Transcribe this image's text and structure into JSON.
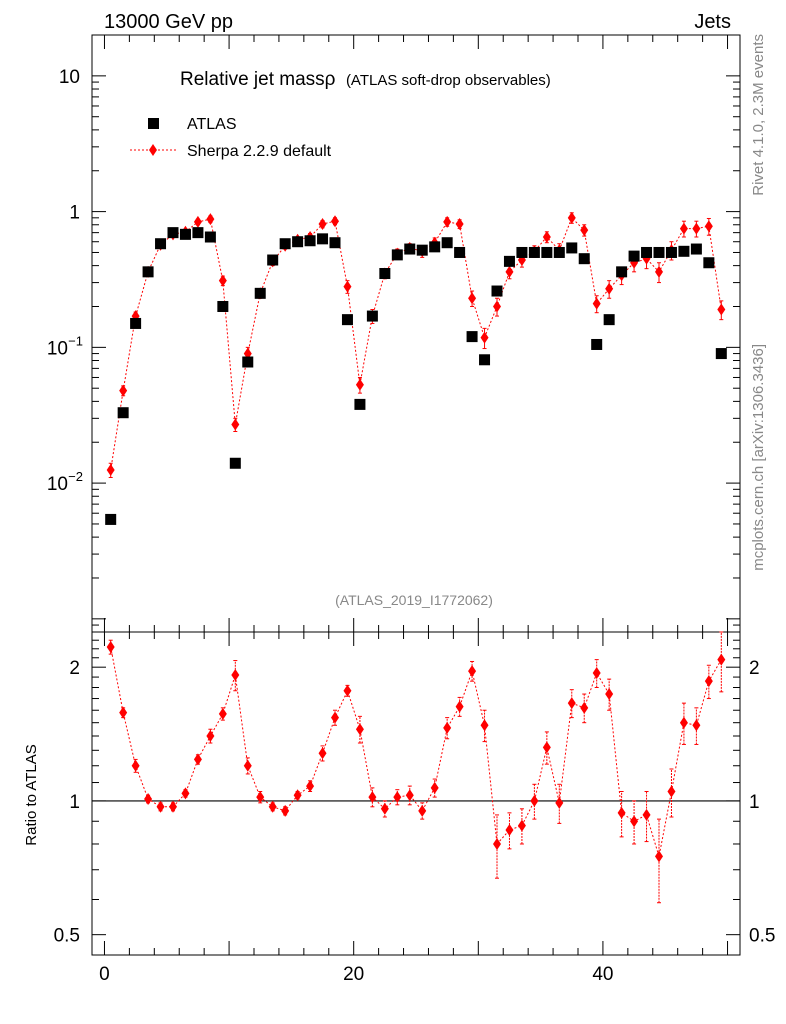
{
  "header": {
    "left": "13000 GeV pp",
    "right": "Jets"
  },
  "side_labels": {
    "rivet": "Rivet 4.1.0,  2.3M events",
    "source": "mcplots.cern.ch [arXiv:1306.3436]"
  },
  "plot_title": {
    "main": "Relative jet massρ",
    "sub": "(ATLAS soft-drop observables)"
  },
  "watermark": "(ATLAS_2019_I1772062)",
  "legend": {
    "data": "ATLAS",
    "mc": "Sherpa 2.2.9 default"
  },
  "colors": {
    "data": "#000000",
    "mc": "#ff0000",
    "frame": "#000000",
    "grey": "#888888"
  },
  "chart_data": [
    {
      "type": "scatter",
      "title": "Relative jet massρ (ATLAS soft-drop observables)",
      "xlabel": "",
      "ylabel": "",
      "yscale": "log",
      "xlim": [
        -1,
        51
      ],
      "ylim": [
        0.0008,
        20
      ],
      "yticks": [
        0.01,
        0.1,
        1,
        10
      ],
      "ytick_labels": {
        "base": "10",
        "exps": [
          "−2",
          "−1",
          "",
          ""
        ],
        "mant": [
          "10",
          "10",
          "1",
          "10"
        ]
      },
      "x": [
        0.5,
        1.5,
        2.5,
        3.5,
        4.5,
        5.5,
        6.5,
        7.5,
        8.5,
        9.5,
        10.5,
        11.5,
        12.5,
        13.5,
        14.5,
        15.5,
        16.5,
        17.5,
        18.5,
        19.5,
        20.5,
        21.5,
        22.5,
        23.5,
        24.5,
        25.5,
        26.5,
        27.5,
        28.5,
        29.5,
        30.5,
        31.5,
        32.5,
        33.5,
        34.5,
        35.5,
        36.5,
        37.5,
        38.5,
        39.5,
        40.5,
        41.5,
        42.5,
        43.5,
        44.5,
        45.5,
        46.5,
        47.5,
        48.5,
        49.5
      ],
      "series": [
        {
          "name": "ATLAS",
          "marker": "square",
          "values": [
            0.0054,
            0.033,
            0.15,
            0.36,
            0.58,
            0.7,
            0.68,
            0.7,
            0.65,
            0.2,
            0.014,
            0.078,
            0.25,
            0.44,
            0.58,
            0.6,
            0.61,
            0.63,
            0.59,
            0.16,
            0.038,
            0.17,
            0.35,
            0.48,
            0.53,
            0.52,
            0.55,
            0.59,
            0.5,
            0.12,
            0.081,
            0.26,
            0.43,
            0.5,
            0.5,
            0.5,
            0.5,
            0.54,
            0.45,
            0.105,
            0.16,
            0.36,
            0.47,
            0.5,
            0.5,
            0.5,
            0.51,
            0.53,
            0.42,
            0.09
          ]
        },
        {
          "name": "Sherpa 2.2.9 default",
          "marker": "diamond",
          "values": [
            0.0125,
            0.048,
            0.17,
            0.36,
            0.57,
            0.68,
            0.71,
            0.84,
            0.88,
            0.31,
            0.027,
            0.09,
            0.25,
            0.43,
            0.56,
            0.62,
            0.65,
            0.81,
            0.85,
            0.28,
            0.053,
            0.17,
            0.35,
            0.49,
            0.54,
            0.51,
            0.59,
            0.84,
            0.81,
            0.23,
            0.118,
            0.2,
            0.36,
            0.44,
            0.51,
            0.65,
            0.52,
            0.9,
            0.73,
            0.21,
            0.27,
            0.34,
            0.42,
            0.45,
            0.36,
            0.52,
            0.75,
            0.75,
            0.78,
            0.19
          ],
          "errors": [
            0.0015,
            0.004,
            0.012,
            0.02,
            0.03,
            0.03,
            0.03,
            0.04,
            0.05,
            0.025,
            0.003,
            0.01,
            0.02,
            0.03,
            0.03,
            0.03,
            0.04,
            0.05,
            0.05,
            0.03,
            0.007,
            0.02,
            0.03,
            0.04,
            0.04,
            0.05,
            0.05,
            0.06,
            0.06,
            0.03,
            0.02,
            0.03,
            0.04,
            0.05,
            0.05,
            0.06,
            0.06,
            0.08,
            0.07,
            0.03,
            0.04,
            0.05,
            0.06,
            0.07,
            0.06,
            0.08,
            0.1,
            0.1,
            0.11,
            0.03
          ]
        }
      ]
    },
    {
      "type": "scatter",
      "title": "",
      "xlabel": "",
      "ylabel": "Ratio to ATLAS",
      "yscale": "log",
      "xlim": [
        -1,
        51
      ],
      "ylim": [
        0.45,
        2.4
      ],
      "yticks": [
        0.5,
        1,
        2
      ],
      "ytick_labels": [
        "0.5",
        "1",
        "2"
      ],
      "xticks": [
        0,
        20,
        40
      ],
      "xtick_labels": [
        "0",
        "20",
        "40"
      ],
      "reference_line": 1,
      "x": [
        0.5,
        1.5,
        2.5,
        3.5,
        4.5,
        5.5,
        6.5,
        7.5,
        8.5,
        9.5,
        10.5,
        11.5,
        12.5,
        13.5,
        14.5,
        15.5,
        16.5,
        17.5,
        18.5,
        19.5,
        20.5,
        21.5,
        22.5,
        23.5,
        24.5,
        25.5,
        26.5,
        27.5,
        28.5,
        29.5,
        30.5,
        31.5,
        32.5,
        33.5,
        34.5,
        35.5,
        36.5,
        37.5,
        38.5,
        39.5,
        40.5,
        41.5,
        42.5,
        43.5,
        44.5,
        45.5,
        46.5,
        47.5,
        48.5,
        49.5
      ],
      "series": [
        {
          "name": "Sherpa 2.2.9 default / ATLAS",
          "marker": "diamond",
          "values": [
            2.22,
            1.58,
            1.2,
            1.01,
            0.97,
            0.97,
            1.04,
            1.24,
            1.4,
            1.57,
            1.92,
            1.2,
            1.02,
            0.97,
            0.95,
            1.03,
            1.08,
            1.28,
            1.54,
            1.77,
            1.45,
            1.02,
            0.96,
            1.02,
            1.03,
            0.95,
            1.07,
            1.46,
            1.63,
            1.96,
            1.48,
            0.8,
            0.86,
            0.88,
            1.0,
            1.32,
            0.99,
            1.66,
            1.62,
            1.94,
            1.74,
            0.94,
            0.9,
            0.93,
            0.75,
            1.05,
            1.5,
            1.48,
            1.86,
            2.08
          ],
          "errors": [
            0.08,
            0.04,
            0.04,
            0.02,
            0.02,
            0.02,
            0.02,
            0.03,
            0.05,
            0.05,
            0.15,
            0.05,
            0.03,
            0.02,
            0.02,
            0.02,
            0.03,
            0.05,
            0.06,
            0.05,
            0.1,
            0.05,
            0.04,
            0.04,
            0.05,
            0.04,
            0.05,
            0.08,
            0.08,
            0.1,
            0.12,
            0.13,
            0.08,
            0.08,
            0.09,
            0.11,
            0.1,
            0.12,
            0.12,
            0.14,
            0.14,
            0.11,
            0.1,
            0.12,
            0.16,
            0.13,
            0.16,
            0.14,
            0.16,
            0.32
          ]
        }
      ]
    }
  ]
}
